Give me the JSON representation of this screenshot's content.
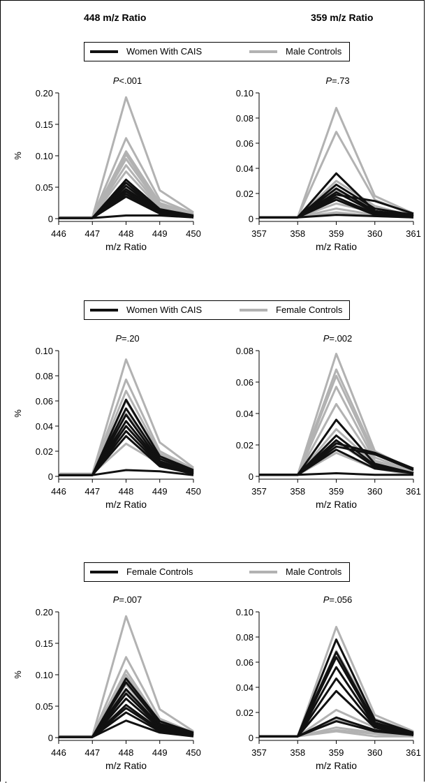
{
  "column_headers": [
    "448 m/z Ratio",
    "359 m/z Ratio"
  ],
  "colors": {
    "dark": "#111111",
    "light": "#b2b2b2"
  },
  "legends": [
    {
      "items": [
        {
          "label": "Women With CAIS",
          "color": "#111111"
        },
        {
          "label": "Male Controls",
          "color": "#b2b2b2"
        }
      ]
    },
    {
      "items": [
        {
          "label": "Women With CAIS",
          "color": "#111111"
        },
        {
          "label": "Female Controls",
          "color": "#b2b2b2"
        }
      ]
    },
    {
      "items": [
        {
          "label": "Female Controls",
          "color": "#111111"
        },
        {
          "label": "Male Controls",
          "color": "#b2b2b2"
        }
      ]
    }
  ],
  "chart_data": [
    {
      "type": "line",
      "p_prefix": "P",
      "p_rest": "<.001",
      "xlabel": "m/z Ratio",
      "ylabel": "%",
      "x": [
        446,
        447,
        448,
        449,
        450
      ],
      "yticks": [
        "0",
        "0.05",
        "0.10",
        "0.15",
        "0.20"
      ],
      "ylim": [
        0,
        0.2
      ],
      "series": [
        {
          "group": "light",
          "values": [
            0.002,
            0.002,
            0.193,
            0.045,
            0.01
          ]
        },
        {
          "group": "light",
          "values": [
            0.002,
            0.002,
            0.128,
            0.03,
            0.008
          ]
        },
        {
          "group": "light",
          "values": [
            0.002,
            0.002,
            0.107,
            0.025,
            0.007
          ]
        },
        {
          "group": "light",
          "values": [
            0.002,
            0.002,
            0.102,
            0.022,
            0.006
          ]
        },
        {
          "group": "light",
          "values": [
            0.002,
            0.002,
            0.095,
            0.02,
            0.005
          ]
        },
        {
          "group": "light",
          "values": [
            0.002,
            0.002,
            0.085,
            0.018,
            0.005
          ]
        },
        {
          "group": "light",
          "values": [
            0.002,
            0.002,
            0.075,
            0.016,
            0.004
          ]
        },
        {
          "group": "dark",
          "values": [
            0.001,
            0.001,
            0.062,
            0.015,
            0.005
          ]
        },
        {
          "group": "dark",
          "values": [
            0.001,
            0.001,
            0.057,
            0.013,
            0.004
          ]
        },
        {
          "group": "dark",
          "values": [
            0.001,
            0.001,
            0.052,
            0.012,
            0.003
          ]
        },
        {
          "group": "dark",
          "values": [
            0.001,
            0.001,
            0.047,
            0.011,
            0.003
          ]
        },
        {
          "group": "dark",
          "values": [
            0.001,
            0.001,
            0.043,
            0.01,
            0.002
          ]
        },
        {
          "group": "dark",
          "values": [
            0.001,
            0.001,
            0.039,
            0.009,
            0.002
          ]
        },
        {
          "group": "dark",
          "values": [
            0.001,
            0.001,
            0.035,
            0.008,
            0.002
          ]
        },
        {
          "group": "dark",
          "values": [
            0.001,
            0.001,
            0.005,
            0.005,
            0.002
          ]
        }
      ]
    },
    {
      "type": "line",
      "p_prefix": "P",
      "p_rest": "=.73",
      "xlabel": "m/z Ratio",
      "ylabel": "",
      "x": [
        357,
        358,
        359,
        360,
        361
      ],
      "yticks": [
        "0",
        "0.02",
        "0.04",
        "0.06",
        "0.08",
        "0.10"
      ],
      "ylim": [
        0,
        0.1
      ],
      "series": [
        {
          "group": "light",
          "values": [
            0.001,
            0.001,
            0.088,
            0.018,
            0.004
          ]
        },
        {
          "group": "light",
          "values": [
            0.001,
            0.001,
            0.069,
            0.015,
            0.003
          ]
        },
        {
          "group": "light",
          "values": [
            0.001,
            0.001,
            0.03,
            0.01,
            0.002
          ]
        },
        {
          "group": "light",
          "values": [
            0.001,
            0.001,
            0.022,
            0.008,
            0.002
          ]
        },
        {
          "group": "light",
          "values": [
            0.001,
            0.001,
            0.012,
            0.005,
            0.002
          ]
        },
        {
          "group": "light",
          "values": [
            0.001,
            0.001,
            0.008,
            0.003,
            0.001
          ]
        },
        {
          "group": "light",
          "values": [
            0.001,
            0.001,
            0.005,
            0.002,
            0.001
          ]
        },
        {
          "group": "dark",
          "values": [
            0.001,
            0.001,
            0.036,
            0.006,
            0.002
          ]
        },
        {
          "group": "dark",
          "values": [
            0.001,
            0.001,
            0.027,
            0.008,
            0.003
          ]
        },
        {
          "group": "dark",
          "values": [
            0.001,
            0.001,
            0.024,
            0.006,
            0.002
          ]
        },
        {
          "group": "dark",
          "values": [
            0.001,
            0.001,
            0.021,
            0.005,
            0.002
          ]
        },
        {
          "group": "dark",
          "values": [
            0.001,
            0.001,
            0.019,
            0.014,
            0.004
          ]
        },
        {
          "group": "dark",
          "values": [
            0.001,
            0.001,
            0.017,
            0.004,
            0.002
          ]
        },
        {
          "group": "dark",
          "values": [
            0.001,
            0.001,
            0.015,
            0.003,
            0.001
          ]
        },
        {
          "group": "dark",
          "values": [
            0.001,
            0.001,
            0.003,
            0.002,
            0.001
          ]
        }
      ]
    },
    {
      "type": "line",
      "p_prefix": "P",
      "p_rest": "=.20",
      "xlabel": "m/z Ratio",
      "ylabel": "%",
      "x": [
        446,
        447,
        448,
        449,
        450
      ],
      "yticks": [
        "0",
        "0.02",
        "0.04",
        "0.06",
        "0.08",
        "0.10"
      ],
      "ylim": [
        0,
        0.1
      ],
      "series": [
        {
          "group": "light",
          "values": [
            0.002,
            0.002,
            0.093,
            0.027,
            0.007
          ]
        },
        {
          "group": "light",
          "values": [
            0.002,
            0.002,
            0.077,
            0.02,
            0.006
          ]
        },
        {
          "group": "light",
          "values": [
            0.002,
            0.002,
            0.068,
            0.018,
            0.005
          ]
        },
        {
          "group": "light",
          "values": [
            0.002,
            0.002,
            0.06,
            0.016,
            0.005
          ]
        },
        {
          "group": "light",
          "values": [
            0.002,
            0.002,
            0.05,
            0.014,
            0.004
          ]
        },
        {
          "group": "light",
          "values": [
            0.002,
            0.002,
            0.04,
            0.012,
            0.004
          ]
        },
        {
          "group": "light",
          "values": [
            0.002,
            0.002,
            0.026,
            0.01,
            0.003
          ]
        },
        {
          "group": "dark",
          "values": [
            0.001,
            0.001,
            0.061,
            0.016,
            0.005
          ]
        },
        {
          "group": "dark",
          "values": [
            0.001,
            0.001,
            0.054,
            0.014,
            0.004
          ]
        },
        {
          "group": "dark",
          "values": [
            0.001,
            0.001,
            0.049,
            0.012,
            0.003
          ]
        },
        {
          "group": "dark",
          "values": [
            0.001,
            0.001,
            0.044,
            0.011,
            0.003
          ]
        },
        {
          "group": "dark",
          "values": [
            0.001,
            0.001,
            0.04,
            0.01,
            0.002
          ]
        },
        {
          "group": "dark",
          "values": [
            0.001,
            0.001,
            0.036,
            0.009,
            0.002
          ]
        },
        {
          "group": "dark",
          "values": [
            0.001,
            0.001,
            0.032,
            0.008,
            0.002
          ]
        },
        {
          "group": "dark",
          "values": [
            0.001,
            0.001,
            0.005,
            0.004,
            0.001
          ]
        }
      ]
    },
    {
      "type": "line",
      "p_prefix": "P",
      "p_rest": "=.002",
      "xlabel": "m/z Ratio",
      "ylabel": "",
      "x": [
        357,
        358,
        359,
        360,
        361
      ],
      "yticks": [
        "0",
        "0.02",
        "0.04",
        "0.06",
        "0.08"
      ],
      "ylim": [
        0,
        0.08
      ],
      "series": [
        {
          "group": "light",
          "values": [
            0.001,
            0.001,
            0.078,
            0.016,
            0.004
          ]
        },
        {
          "group": "light",
          "values": [
            0.001,
            0.001,
            0.068,
            0.014,
            0.004
          ]
        },
        {
          "group": "light",
          "values": [
            0.001,
            0.001,
            0.064,
            0.012,
            0.003
          ]
        },
        {
          "group": "light",
          "values": [
            0.001,
            0.001,
            0.057,
            0.01,
            0.003
          ]
        },
        {
          "group": "light",
          "values": [
            0.001,
            0.001,
            0.046,
            0.009,
            0.002
          ]
        },
        {
          "group": "light",
          "values": [
            0.001,
            0.001,
            0.03,
            0.008,
            0.002
          ]
        },
        {
          "group": "light",
          "values": [
            0.001,
            0.001,
            0.022,
            0.006,
            0.002
          ]
        },
        {
          "group": "light",
          "values": [
            0.001,
            0.001,
            0.015,
            0.005,
            0.001
          ]
        },
        {
          "group": "dark",
          "values": [
            0.001,
            0.001,
            0.036,
            0.008,
            0.002
          ]
        },
        {
          "group": "dark",
          "values": [
            0.001,
            0.001,
            0.026,
            0.007,
            0.002
          ]
        },
        {
          "group": "dark",
          "values": [
            0.001,
            0.001,
            0.023,
            0.006,
            0.002
          ]
        },
        {
          "group": "dark",
          "values": [
            0.001,
            0.001,
            0.021,
            0.015,
            0.005
          ]
        },
        {
          "group": "dark",
          "values": [
            0.001,
            0.001,
            0.019,
            0.014,
            0.004
          ]
        },
        {
          "group": "dark",
          "values": [
            0.001,
            0.001,
            0.017,
            0.005,
            0.002
          ]
        },
        {
          "group": "dark",
          "values": [
            0.001,
            0.001,
            0.002,
            0.001,
            0.001
          ]
        }
      ]
    },
    {
      "type": "line",
      "p_prefix": "P",
      "p_rest": "=.007",
      "xlabel": "m/z Ratio",
      "ylabel": "%",
      "x": [
        446,
        447,
        448,
        449,
        450
      ],
      "yticks": [
        "0",
        "0.05",
        "0.10",
        "0.15",
        "0.20"
      ],
      "ylim": [
        0,
        0.2
      ],
      "series": [
        {
          "group": "light",
          "values": [
            0.002,
            0.002,
            0.193,
            0.045,
            0.01
          ]
        },
        {
          "group": "light",
          "values": [
            0.002,
            0.002,
            0.128,
            0.03,
            0.008
          ]
        },
        {
          "group": "light",
          "values": [
            0.002,
            0.002,
            0.107,
            0.025,
            0.007
          ]
        },
        {
          "group": "light",
          "values": [
            0.002,
            0.002,
            0.1,
            0.022,
            0.006
          ]
        },
        {
          "group": "light",
          "values": [
            0.002,
            0.002,
            0.085,
            0.018,
            0.005
          ]
        },
        {
          "group": "light",
          "values": [
            0.002,
            0.002,
            0.075,
            0.016,
            0.004
          ]
        },
        {
          "group": "dark",
          "values": [
            0.001,
            0.001,
            0.094,
            0.026,
            0.008
          ]
        },
        {
          "group": "dark",
          "values": [
            0.001,
            0.001,
            0.088,
            0.022,
            0.007
          ]
        },
        {
          "group": "dark",
          "values": [
            0.001,
            0.001,
            0.077,
            0.019,
            0.006
          ]
        },
        {
          "group": "dark",
          "values": [
            0.001,
            0.001,
            0.07,
            0.017,
            0.005
          ]
        },
        {
          "group": "dark",
          "values": [
            0.001,
            0.001,
            0.062,
            0.015,
            0.004
          ]
        },
        {
          "group": "dark",
          "values": [
            0.001,
            0.001,
            0.052,
            0.013,
            0.004
          ]
        },
        {
          "group": "dark",
          "values": [
            0.001,
            0.001,
            0.047,
            0.012,
            0.003
          ]
        },
        {
          "group": "dark",
          "values": [
            0.001,
            0.001,
            0.04,
            0.01,
            0.003
          ]
        },
        {
          "group": "dark",
          "values": [
            0.001,
            0.001,
            0.027,
            0.008,
            0.002
          ]
        }
      ]
    },
    {
      "type": "line",
      "p_prefix": "P",
      "p_rest": "=.056",
      "xlabel": "m/z Ratio",
      "ylabel": "",
      "x": [
        357,
        358,
        359,
        360,
        361
      ],
      "yticks": [
        "0",
        "0.02",
        "0.04",
        "0.06",
        "0.08",
        "0.10"
      ],
      "ylim": [
        0,
        0.1
      ],
      "series": [
        {
          "group": "light",
          "values": [
            0.001,
            0.001,
            0.088,
            0.018,
            0.005
          ]
        },
        {
          "group": "light",
          "values": [
            0.001,
            0.001,
            0.069,
            0.015,
            0.004
          ]
        },
        {
          "group": "light",
          "values": [
            0.001,
            0.001,
            0.022,
            0.008,
            0.002
          ]
        },
        {
          "group": "light",
          "values": [
            0.001,
            0.001,
            0.014,
            0.006,
            0.002
          ]
        },
        {
          "group": "light",
          "values": [
            0.001,
            0.001,
            0.008,
            0.004,
            0.001
          ]
        },
        {
          "group": "light",
          "values": [
            0.001,
            0.001,
            0.006,
            0.003,
            0.001
          ]
        },
        {
          "group": "light",
          "values": [
            0.001,
            0.001,
            0.005,
            0.001,
            0.001
          ]
        },
        {
          "group": "dark",
          "values": [
            0.001,
            0.001,
            0.078,
            0.014,
            0.004
          ]
        },
        {
          "group": "dark",
          "values": [
            0.001,
            0.001,
            0.068,
            0.012,
            0.003
          ]
        },
        {
          "group": "dark",
          "values": [
            0.001,
            0.001,
            0.064,
            0.011,
            0.003
          ]
        },
        {
          "group": "dark",
          "values": [
            0.001,
            0.001,
            0.056,
            0.01,
            0.003
          ]
        },
        {
          "group": "dark",
          "values": [
            0.001,
            0.001,
            0.047,
            0.009,
            0.002
          ]
        },
        {
          "group": "dark",
          "values": [
            0.001,
            0.001,
            0.037,
            0.008,
            0.002
          ]
        },
        {
          "group": "dark",
          "values": [
            0.001,
            0.001,
            0.016,
            0.006,
            0.002
          ]
        },
        {
          "group": "dark",
          "values": [
            0.001,
            0.001,
            0.013,
            0.005,
            0.002
          ]
        }
      ]
    }
  ]
}
